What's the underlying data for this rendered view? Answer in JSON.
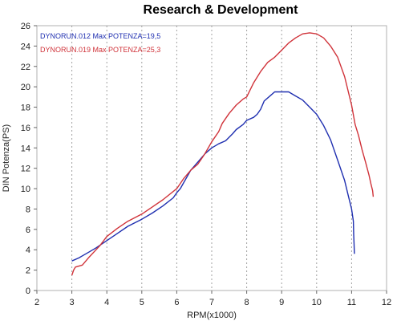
{
  "chart_data": {
    "type": "line",
    "title": "Research & Development",
    "xlabel": "RPM(x1000)",
    "ylabel": "DIN Potenza(PS)",
    "xlim": [
      2,
      12
    ],
    "ylim": [
      0,
      26
    ],
    "xticks": [
      2,
      3,
      4,
      5,
      6,
      7,
      8,
      9,
      10,
      11,
      12
    ],
    "yticks": [
      0,
      2,
      4,
      6,
      8,
      10,
      12,
      14,
      16,
      18,
      20,
      22,
      24,
      26
    ],
    "grid": "vertical-dashed",
    "legend_position": "top-left",
    "series": [
      {
        "name": "DYNORUN.012  Max POTENZA=19,5",
        "color": "#1f2fb0",
        "points": [
          [
            3.0,
            2.9
          ],
          [
            3.2,
            3.2
          ],
          [
            3.3,
            3.4
          ],
          [
            3.5,
            3.8
          ],
          [
            3.7,
            4.2
          ],
          [
            4.0,
            4.9
          ],
          [
            4.3,
            5.6
          ],
          [
            4.6,
            6.3
          ],
          [
            5.0,
            7.0
          ],
          [
            5.3,
            7.6
          ],
          [
            5.6,
            8.3
          ],
          [
            5.9,
            9.1
          ],
          [
            6.0,
            9.6
          ],
          [
            6.1,
            10.0
          ],
          [
            6.2,
            10.6
          ],
          [
            6.4,
            11.8
          ],
          [
            6.6,
            12.6
          ],
          [
            6.8,
            13.4
          ],
          [
            7.0,
            14.0
          ],
          [
            7.2,
            14.4
          ],
          [
            7.4,
            14.7
          ],
          [
            7.6,
            15.4
          ],
          [
            7.7,
            15.8
          ],
          [
            7.9,
            16.3
          ],
          [
            8.0,
            16.7
          ],
          [
            8.2,
            17.0
          ],
          [
            8.3,
            17.3
          ],
          [
            8.4,
            17.8
          ],
          [
            8.5,
            18.6
          ],
          [
            8.7,
            19.2
          ],
          [
            8.8,
            19.5
          ],
          [
            9.0,
            19.5
          ],
          [
            9.2,
            19.5
          ],
          [
            9.4,
            19.1
          ],
          [
            9.6,
            18.7
          ],
          [
            9.8,
            18.0
          ],
          [
            10.0,
            17.3
          ],
          [
            10.2,
            16.2
          ],
          [
            10.4,
            14.8
          ],
          [
            10.6,
            12.8
          ],
          [
            10.8,
            10.8
          ],
          [
            10.9,
            9.4
          ],
          [
            11.0,
            8.0
          ],
          [
            11.05,
            6.8
          ],
          [
            11.06,
            5.5
          ],
          [
            11.07,
            4.5
          ],
          [
            11.08,
            3.6
          ]
        ]
      },
      {
        "name": "DYNORUN.019  Max POTENZA=25,3",
        "color": "#d0333a",
        "points": [
          [
            3.0,
            1.5
          ],
          [
            3.05,
            2.0
          ],
          [
            3.1,
            2.3
          ],
          [
            3.3,
            2.5
          ],
          [
            3.5,
            3.3
          ],
          [
            3.8,
            4.4
          ],
          [
            4.0,
            5.3
          ],
          [
            4.3,
            6.1
          ],
          [
            4.6,
            6.8
          ],
          [
            5.0,
            7.5
          ],
          [
            5.3,
            8.2
          ],
          [
            5.6,
            8.9
          ],
          [
            6.0,
            10.0
          ],
          [
            6.2,
            11.0
          ],
          [
            6.4,
            11.8
          ],
          [
            6.6,
            12.4
          ],
          [
            6.8,
            13.4
          ],
          [
            7.0,
            14.6
          ],
          [
            7.2,
            15.6
          ],
          [
            7.3,
            16.4
          ],
          [
            7.5,
            17.4
          ],
          [
            7.7,
            18.2
          ],
          [
            7.9,
            18.8
          ],
          [
            8.0,
            19.0
          ],
          [
            8.2,
            20.4
          ],
          [
            8.4,
            21.5
          ],
          [
            8.6,
            22.4
          ],
          [
            8.8,
            22.9
          ],
          [
            9.0,
            23.6
          ],
          [
            9.2,
            24.3
          ],
          [
            9.4,
            24.8
          ],
          [
            9.6,
            25.2
          ],
          [
            9.8,
            25.3
          ],
          [
            10.0,
            25.2
          ],
          [
            10.2,
            24.8
          ],
          [
            10.4,
            24.0
          ],
          [
            10.6,
            22.9
          ],
          [
            10.8,
            21.0
          ],
          [
            11.0,
            18.2
          ],
          [
            11.1,
            16.3
          ],
          [
            11.2,
            15.2
          ],
          [
            11.3,
            13.8
          ],
          [
            11.4,
            12.6
          ],
          [
            11.5,
            11.3
          ],
          [
            11.55,
            10.5
          ],
          [
            11.6,
            9.8
          ],
          [
            11.62,
            9.2
          ]
        ]
      }
    ]
  }
}
